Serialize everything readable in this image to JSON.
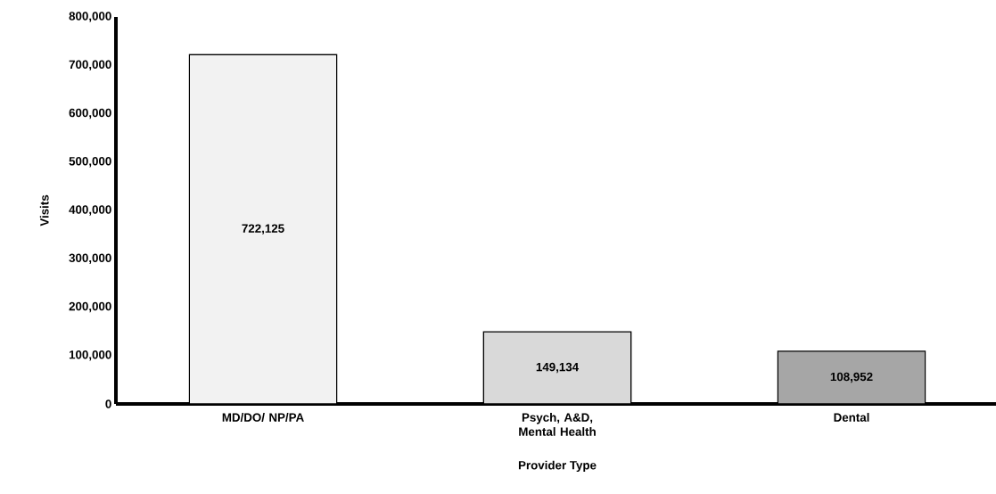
{
  "chart_data": {
    "type": "bar",
    "xlabel": "Provider Type",
    "ylabel": "Visits",
    "categories": [
      "MD/DO/ NP/PA",
      "Psych, A&D, Mental Health",
      "Dental"
    ],
    "values": [
      722125,
      149134,
      108952
    ],
    "value_labels": [
      "722,125",
      "149,134",
      "108,952"
    ],
    "colors": [
      "#f2f2f2",
      "#d9d9d9",
      "#a6a6a6"
    ],
    "ylim": [
      0,
      800000
    ],
    "yticks": [
      0,
      {
        "value": 100000,
        "label": "100,000"
      },
      {
        "value": 200000,
        "label": "200,000"
      },
      {
        "value": 300000,
        "label": "300,000"
      },
      {
        "value": 400000,
        "label": "400,000"
      },
      {
        "value": 500000,
        "label": "500,000"
      },
      {
        "value": 600000,
        "label": "600,000"
      },
      {
        "value": 700000,
        "label": "700,000"
      },
      {
        "value": 800000,
        "label": "800,000"
      }
    ],
    "grid": false
  }
}
